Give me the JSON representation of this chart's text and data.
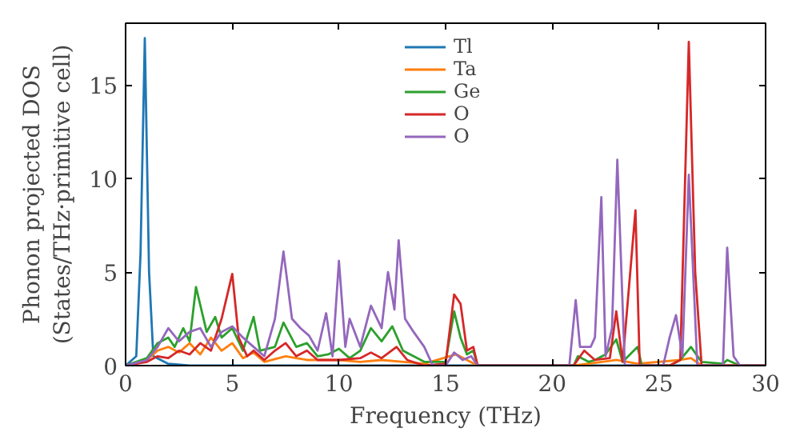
{
  "chart_data": {
    "type": "line",
    "xlabel": "Frequency (THz)",
    "ylabel": "Phonon projected DOS\n(States/THz·primitive cell)",
    "xlim": [
      0,
      30
    ],
    "ylim": [
      0,
      18.3
    ],
    "xticks": [
      0,
      5,
      10,
      15,
      20,
      25,
      30
    ],
    "yticks": [
      0,
      5,
      10,
      15
    ],
    "grid": false,
    "legend": "top",
    "marker": "none",
    "line_style": "solid",
    "series": [
      {
        "name": "Tl",
        "color": "#1f77b4",
        "x": [
          0,
          0.5,
          0.7,
          0.9,
          1.1,
          1.3,
          2,
          3,
          30
        ],
        "values": [
          0,
          0.5,
          6,
          17.5,
          5,
          0.5,
          0.1,
          0,
          0
        ]
      },
      {
        "name": "Ta",
        "color": "#ff7f0e",
        "x": [
          0,
          1,
          1.5,
          2,
          2.5,
          3,
          3.5,
          4,
          4.5,
          5,
          5.5,
          6,
          6.5,
          7.5,
          8.5,
          10,
          11,
          12,
          14,
          15.5,
          16,
          16.5,
          21,
          23,
          24,
          26,
          26.5,
          27,
          30
        ],
        "values": [
          0,
          0.3,
          0.8,
          1.0,
          0.7,
          1.2,
          0.6,
          1.5,
          0.8,
          1.2,
          0.4,
          0.7,
          0.2,
          0.5,
          0.3,
          0.3,
          0.2,
          0.3,
          0.1,
          0.6,
          0.3,
          0,
          0,
          0.3,
          0.1,
          0.3,
          0.4,
          0,
          0
        ]
      },
      {
        "name": "Ge",
        "color": "#2ca02c",
        "x": [
          0,
          1,
          1.5,
          2,
          2.3,
          2.7,
          3,
          3.3,
          3.8,
          4.2,
          4.5,
          5,
          5.5,
          6,
          6.3,
          7,
          7.4,
          8,
          8.5,
          9,
          9.5,
          10,
          10.5,
          11,
          11.5,
          12,
          12.5,
          13,
          13.5,
          14,
          15,
          15.4,
          15.7,
          16,
          16.3,
          16.5,
          21,
          21.2,
          21.7,
          22,
          22.5,
          23,
          23.3,
          24,
          24.2,
          25.5,
          26,
          26.5,
          27,
          28,
          28.2,
          28.8,
          30
        ],
        "values": [
          0,
          0.4,
          1.2,
          1.5,
          1.0,
          2.0,
          1.3,
          4.2,
          1.8,
          2.6,
          1.5,
          2.0,
          0.8,
          2.6,
          0.8,
          1.0,
          2.3,
          1.0,
          1.2,
          0.5,
          0.6,
          0.9,
          0.4,
          0.8,
          2.0,
          1.3,
          2.1,
          0.8,
          0.5,
          0.2,
          0.2,
          2.9,
          1.5,
          0.6,
          0.8,
          0,
          0,
          0.5,
          0.2,
          0.3,
          0.6,
          1.4,
          0.2,
          1.0,
          0,
          0,
          0.3,
          1.0,
          0.2,
          0.1,
          0.3,
          0,
          0
        ]
      },
      {
        "name": "O",
        "color": "#d62728",
        "x": [
          0,
          1,
          1.5,
          2,
          2.5,
          3,
          3.5,
          4,
          4.5,
          5,
          5.3,
          5.7,
          6,
          6.5,
          7,
          7.5,
          8,
          8.5,
          9,
          10,
          11,
          11.5,
          12,
          12.7,
          13.2,
          14,
          15,
          15.4,
          15.7,
          16,
          16.3,
          16.5,
          21,
          21.5,
          22,
          22.7,
          23,
          23.3,
          23.9,
          24.1,
          25.5,
          26,
          26.4,
          26.7,
          27,
          30
        ],
        "values": [
          0,
          0.2,
          0.5,
          0.4,
          0.8,
          0.6,
          1.2,
          0.8,
          2.5,
          4.9,
          1.5,
          0.5,
          0.8,
          0.3,
          0.8,
          1.2,
          0.5,
          0.8,
          0.3,
          0.3,
          0.4,
          0.7,
          0.4,
          1.0,
          0.3,
          0,
          0.1,
          3.8,
          3.3,
          0.8,
          1.0,
          0,
          0,
          0.8,
          0.3,
          0.4,
          2.9,
          0.2,
          8.3,
          0,
          0,
          0.3,
          17.3,
          5,
          0,
          0
        ]
      },
      {
        "name": "O",
        "color": "#9467bd",
        "x": [
          0,
          1,
          1.5,
          2,
          2.5,
          3,
          3.5,
          4,
          4.5,
          5,
          5.5,
          6,
          6.5,
          7,
          7.4,
          7.8,
          8.2,
          8.6,
          9,
          9.4,
          9.7,
          10,
          10.3,
          10.5,
          11,
          11.5,
          12,
          12.3,
          12.6,
          12.8,
          13.1,
          13.5,
          14,
          14.4,
          15,
          15.4,
          15.8,
          16.2,
          16.5,
          20.8,
          21.1,
          21.3,
          21.8,
          22,
          22.3,
          22.5,
          22.8,
          23.05,
          23.4,
          25.2,
          25.5,
          25.8,
          26.1,
          26.4,
          26.8,
          28,
          28.2,
          28.5,
          28.8,
          30
        ],
        "values": [
          0,
          0.3,
          1.0,
          2.0,
          1.3,
          1.8,
          2.0,
          1.0,
          1.8,
          2.1,
          1.5,
          1.0,
          0.5,
          2.5,
          6.1,
          2.5,
          2.0,
          1.6,
          0.8,
          2.8,
          0.5,
          5.6,
          1.0,
          2.5,
          1.0,
          3.2,
          2.0,
          5.0,
          3.0,
          6.7,
          2.5,
          1.8,
          1.0,
          0,
          0,
          0.7,
          0.3,
          0.5,
          0,
          0,
          3.5,
          1.0,
          1.0,
          1.5,
          9.0,
          0.5,
          2.0,
          11.0,
          0,
          0,
          1.5,
          2.7,
          0.5,
          10.2,
          0,
          0,
          6.3,
          0.5,
          0,
          0
        ]
      }
    ]
  }
}
